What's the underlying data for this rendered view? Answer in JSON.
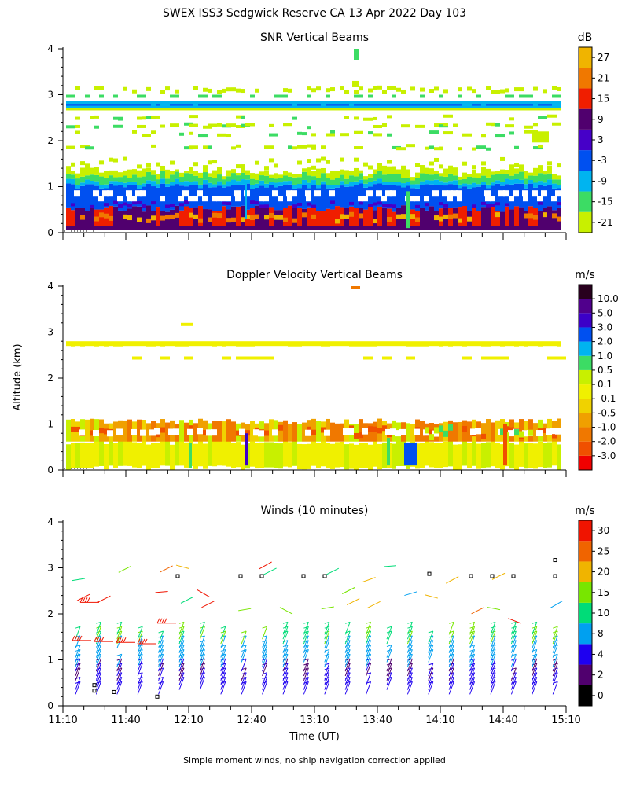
{
  "page": {
    "title": "SWEX ISS3 Sedgwick Reserve CA  13 Apr 2022 Day 103",
    "footnote": "Simple moment winds, no ship navigation correction applied",
    "ylabel": "Altitude (km)",
    "xlabel": "Time (UT)"
  },
  "chart_data": [
    {
      "type": "heatmap",
      "title": "SNR Vertical Beams",
      "x_range": [
        "11:10",
        "15:10"
      ],
      "ylim": [
        0,
        4
      ],
      "yticks": [
        "0",
        "1",
        "2",
        "3",
        "4"
      ],
      "xtick_labels": [],
      "colorbar": {
        "unit": "dB",
        "colors": [
          "#c8f000",
          "#3cdc64",
          "#00b4f0",
          "#0050f0",
          "#4600c8",
          "#50006e",
          "#f01e00",
          "#f07800",
          "#f0b400"
        ],
        "labels": [
          "-21",
          "-15",
          "-9",
          "-3",
          "3",
          "9",
          "15",
          "21",
          "27"
        ]
      },
      "layers": [
        {
          "altitude_km": [
            0.0,
            0.15
          ],
          "value_db": 9
        },
        {
          "altitude_km": [
            0.15,
            0.55
          ],
          "value_db": 12
        },
        {
          "altitude_km": [
            0.55,
            0.85
          ],
          "value_db": 2
        },
        {
          "altitude_km": [
            0.85,
            1.05
          ],
          "value_db": -6
        },
        {
          "altitude_km": [
            1.05,
            1.3
          ],
          "value_db": -18
        },
        {
          "altitude_km": [
            2.7,
            2.85
          ],
          "value_db": -1
        }
      ]
    },
    {
      "type": "heatmap",
      "title": "Doppler Velocity Vertical Beams",
      "x_range": [
        "11:10",
        "15:10"
      ],
      "ylim": [
        0,
        4
      ],
      "yticks": [
        "0",
        "1",
        "2",
        "3",
        "4"
      ],
      "xtick_labels": [],
      "colorbar": {
        "unit": "m/s",
        "colors": [
          "#f00000",
          "#f05000",
          "#f07800",
          "#f0a000",
          "#f0d200",
          "#f0f000",
          "#c8f000",
          "#3cdc64",
          "#00b4f0",
          "#0050f0",
          "#3c00c8",
          "#50008c",
          "#28001e"
        ],
        "labels": [
          "-3.0",
          "-2.0",
          "-1.0",
          "-0.5",
          "-0.1",
          "0.1",
          "0.5",
          "1.0",
          "2.0",
          "3.0",
          "5.0",
          "10.0"
        ]
      },
      "layers": [
        {
          "altitude_km": [
            0.0,
            0.55
          ],
          "value_ms": 0.0
        },
        {
          "altitude_km": [
            0.55,
            1.1
          ],
          "value_ms": -0.8
        },
        {
          "altitude_km": [
            2.7,
            2.8
          ],
          "value_ms": 0.0
        }
      ]
    },
    {
      "type": "scatter",
      "title": "Winds (10 minutes)",
      "x_range": [
        "11:10",
        "15:10"
      ],
      "ylim": [
        0,
        4
      ],
      "yticks": [
        "0",
        "1",
        "2",
        "3",
        "4"
      ],
      "xtick_labels": [
        "11:10",
        "11:40",
        "12:10",
        "12:40",
        "13:10",
        "13:40",
        "14:10",
        "14:40",
        "15:10"
      ],
      "colorbar": {
        "unit": "m/s",
        "colors": [
          "#000000",
          "#50006e",
          "#1e00f0",
          "#00a0f0",
          "#00dc78",
          "#78e600",
          "#f0b400",
          "#f06400",
          "#f01400"
        ],
        "labels": [
          "0",
          "2",
          "4",
          "8",
          "10",
          "15",
          "20",
          "25",
          "30"
        ]
      }
    }
  ]
}
